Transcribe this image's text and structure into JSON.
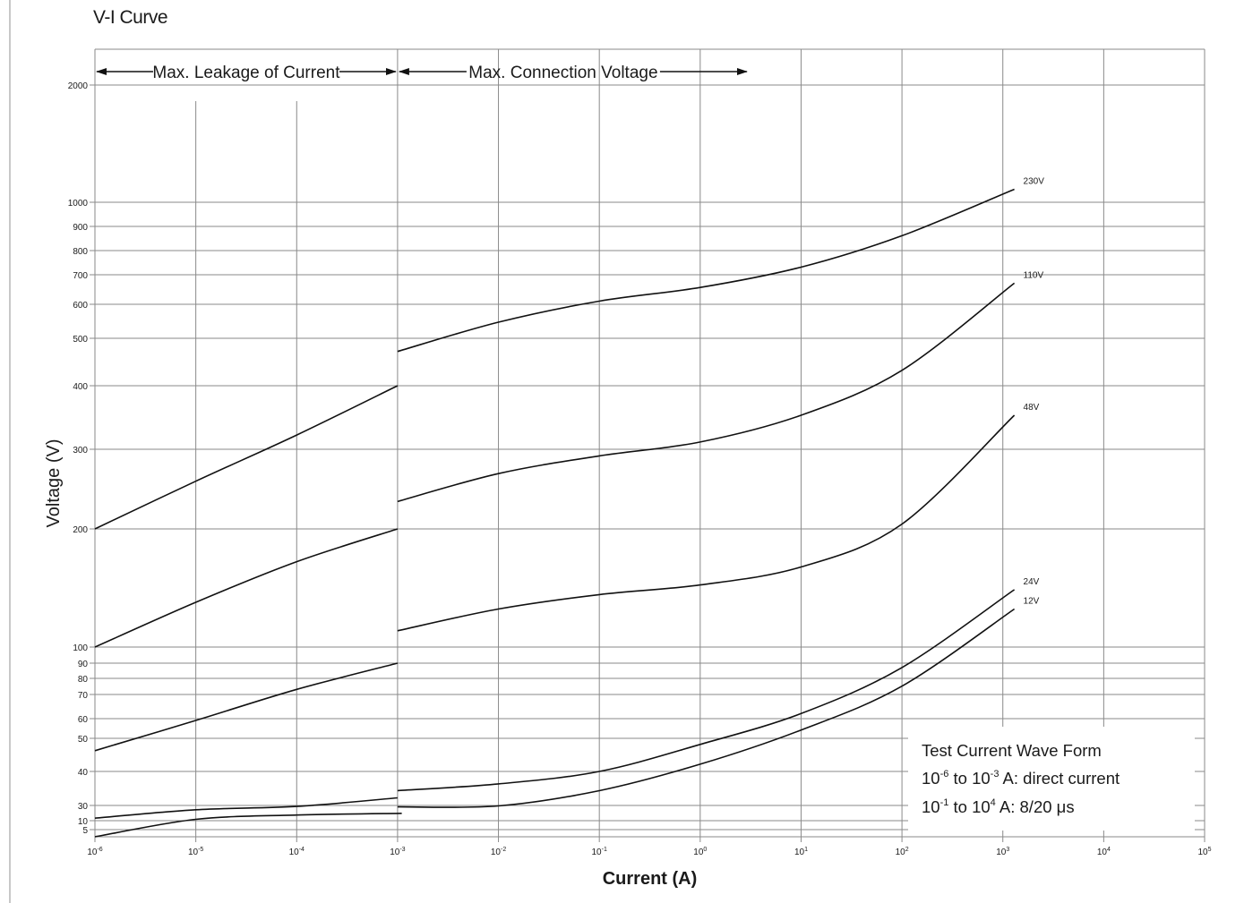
{
  "chart_data": {
    "type": "line",
    "title": "V-I Curve",
    "xlabel": "Current (A)",
    "ylabel": "Voltage (V)",
    "xscale": "log",
    "yscale": "log",
    "xlim": [
      1e-06,
      100000.0
    ],
    "ylim": [
      4,
      2000
    ],
    "x_ticks": [
      {
        "value": 1e-06,
        "base": "10",
        "exp": "-6"
      },
      {
        "value": 1e-05,
        "base": "10",
        "exp": "-5"
      },
      {
        "value": 0.0001,
        "base": "10",
        "exp": "-4"
      },
      {
        "value": 0.001,
        "base": "10",
        "exp": "-3"
      },
      {
        "value": 0.01,
        "base": "10",
        "exp": "-2"
      },
      {
        "value": 0.1,
        "base": "10",
        "exp": "-1"
      },
      {
        "value": 1,
        "base": "10",
        "exp": "0"
      },
      {
        "value": 10,
        "base": "10",
        "exp": "1"
      },
      {
        "value": 100,
        "base": "10",
        "exp": "2"
      },
      {
        "value": 1000,
        "base": "10",
        "exp": "3"
      },
      {
        "value": 10000,
        "base": "10",
        "exp": "4"
      },
      {
        "value": 100000,
        "base": "10",
        "exp": "5"
      }
    ],
    "y_ticks": [
      {
        "value": 2000,
        "label": "2000"
      },
      {
        "value": 1000,
        "label": "1000"
      },
      {
        "value": 900,
        "label": "900"
      },
      {
        "value": 800,
        "label": "800"
      },
      {
        "value": 700,
        "label": "700"
      },
      {
        "value": 600,
        "label": "600"
      },
      {
        "value": 500,
        "label": "500"
      },
      {
        "value": 400,
        "label": "400"
      },
      {
        "value": 300,
        "label": "300"
      },
      {
        "value": 200,
        "label": "200"
      },
      {
        "value": 100,
        "label": "100"
      },
      {
        "value": 90,
        "label": "90"
      },
      {
        "value": 80,
        "label": "80"
      },
      {
        "value": 70,
        "label": "70"
      },
      {
        "value": 60,
        "label": "60"
      },
      {
        "value": 50,
        "label": "50"
      },
      {
        "value": 40,
        "label": "40"
      },
      {
        "value": 30,
        "label": "30"
      },
      {
        "value": 10,
        "label": "10"
      },
      {
        "value": 5,
        "label": "5"
      }
    ],
    "grid": true,
    "regions": [
      {
        "label": "Max. Leakage of Current",
        "x_from": 1e-06,
        "x_to": 0.001
      },
      {
        "label": "Max. Connection Voltage",
        "x_from": 0.001,
        "x_to": 10
      }
    ],
    "series": [
      {
        "name": "230V",
        "segments": [
          [
            [
              1e-06,
              200
            ],
            [
              1e-05,
              255
            ],
            [
              0.0001,
              320
            ],
            [
              0.001,
              400
            ]
          ],
          [
            [
              0.001,
              470
            ],
            [
              0.01,
              545
            ],
            [
              0.1,
              610
            ],
            [
              1,
              655
            ],
            [
              10,
              730
            ],
            [
              100,
              860
            ],
            [
              1300,
              1080
            ]
          ]
        ]
      },
      {
        "name": "110V",
        "segments": [
          [
            [
              1e-06,
              100
            ],
            [
              1e-05,
              130
            ],
            [
              0.0001,
              165
            ],
            [
              0.001,
              200
            ]
          ],
          [
            [
              0.001,
              230
            ],
            [
              0.01,
              265
            ],
            [
              0.1,
              290
            ],
            [
              1,
              310
            ],
            [
              10,
              350
            ],
            [
              100,
              430
            ],
            [
              1300,
              670
            ]
          ]
        ]
      },
      {
        "name": "48V",
        "segments": [
          [
            [
              1e-06,
              46
            ],
            [
              1e-05,
              59
            ],
            [
              0.0001,
              73
            ],
            [
              0.001,
              90
            ]
          ],
          [
            [
              0.001,
              110
            ],
            [
              0.01,
              125
            ],
            [
              0.1,
              136
            ],
            [
              1,
              144
            ],
            [
              10,
              160
            ],
            [
              100,
              205
            ],
            [
              1300,
              350
            ]
          ]
        ]
      },
      {
        "name": "24V",
        "segments": [
          [
            [
              1e-06,
              12
            ],
            [
              1e-05,
              22
            ],
            [
              0.0001,
              28
            ],
            [
              0.001,
              32
            ]
          ],
          [
            [
              0.001,
              34
            ],
            [
              0.01,
              36
            ],
            [
              0.1,
              40
            ],
            [
              1,
              48
            ],
            [
              10,
              62
            ],
            [
              100,
              87
            ],
            [
              1300,
              140
            ]
          ]
        ]
      },
      {
        "name": "12V",
        "segments": [
          [
            [
              1e-06,
              4
            ],
            [
              1e-05,
              11
            ],
            [
              0.0001,
              15
            ],
            [
              0.0011,
              17
            ]
          ],
          [
            [
              0.001,
              27
            ],
            [
              0.01,
              29
            ],
            [
              0.1,
              34
            ],
            [
              1,
              42
            ],
            [
              10,
              54
            ],
            [
              100,
              75
            ],
            [
              1300,
              125
            ]
          ]
        ]
      }
    ],
    "annotation": {
      "title": "Test Current Wave Form",
      "line1": {
        "base1": "10",
        "exp1": "-6",
        "mid": " to 10",
        "exp2": "-3",
        "rest": " A: direct current"
      },
      "line2": {
        "base1": "10",
        "exp1": "-1",
        "mid": " to 10",
        "exp2": "4",
        "rest": "  A: 8/20 μs"
      }
    }
  }
}
